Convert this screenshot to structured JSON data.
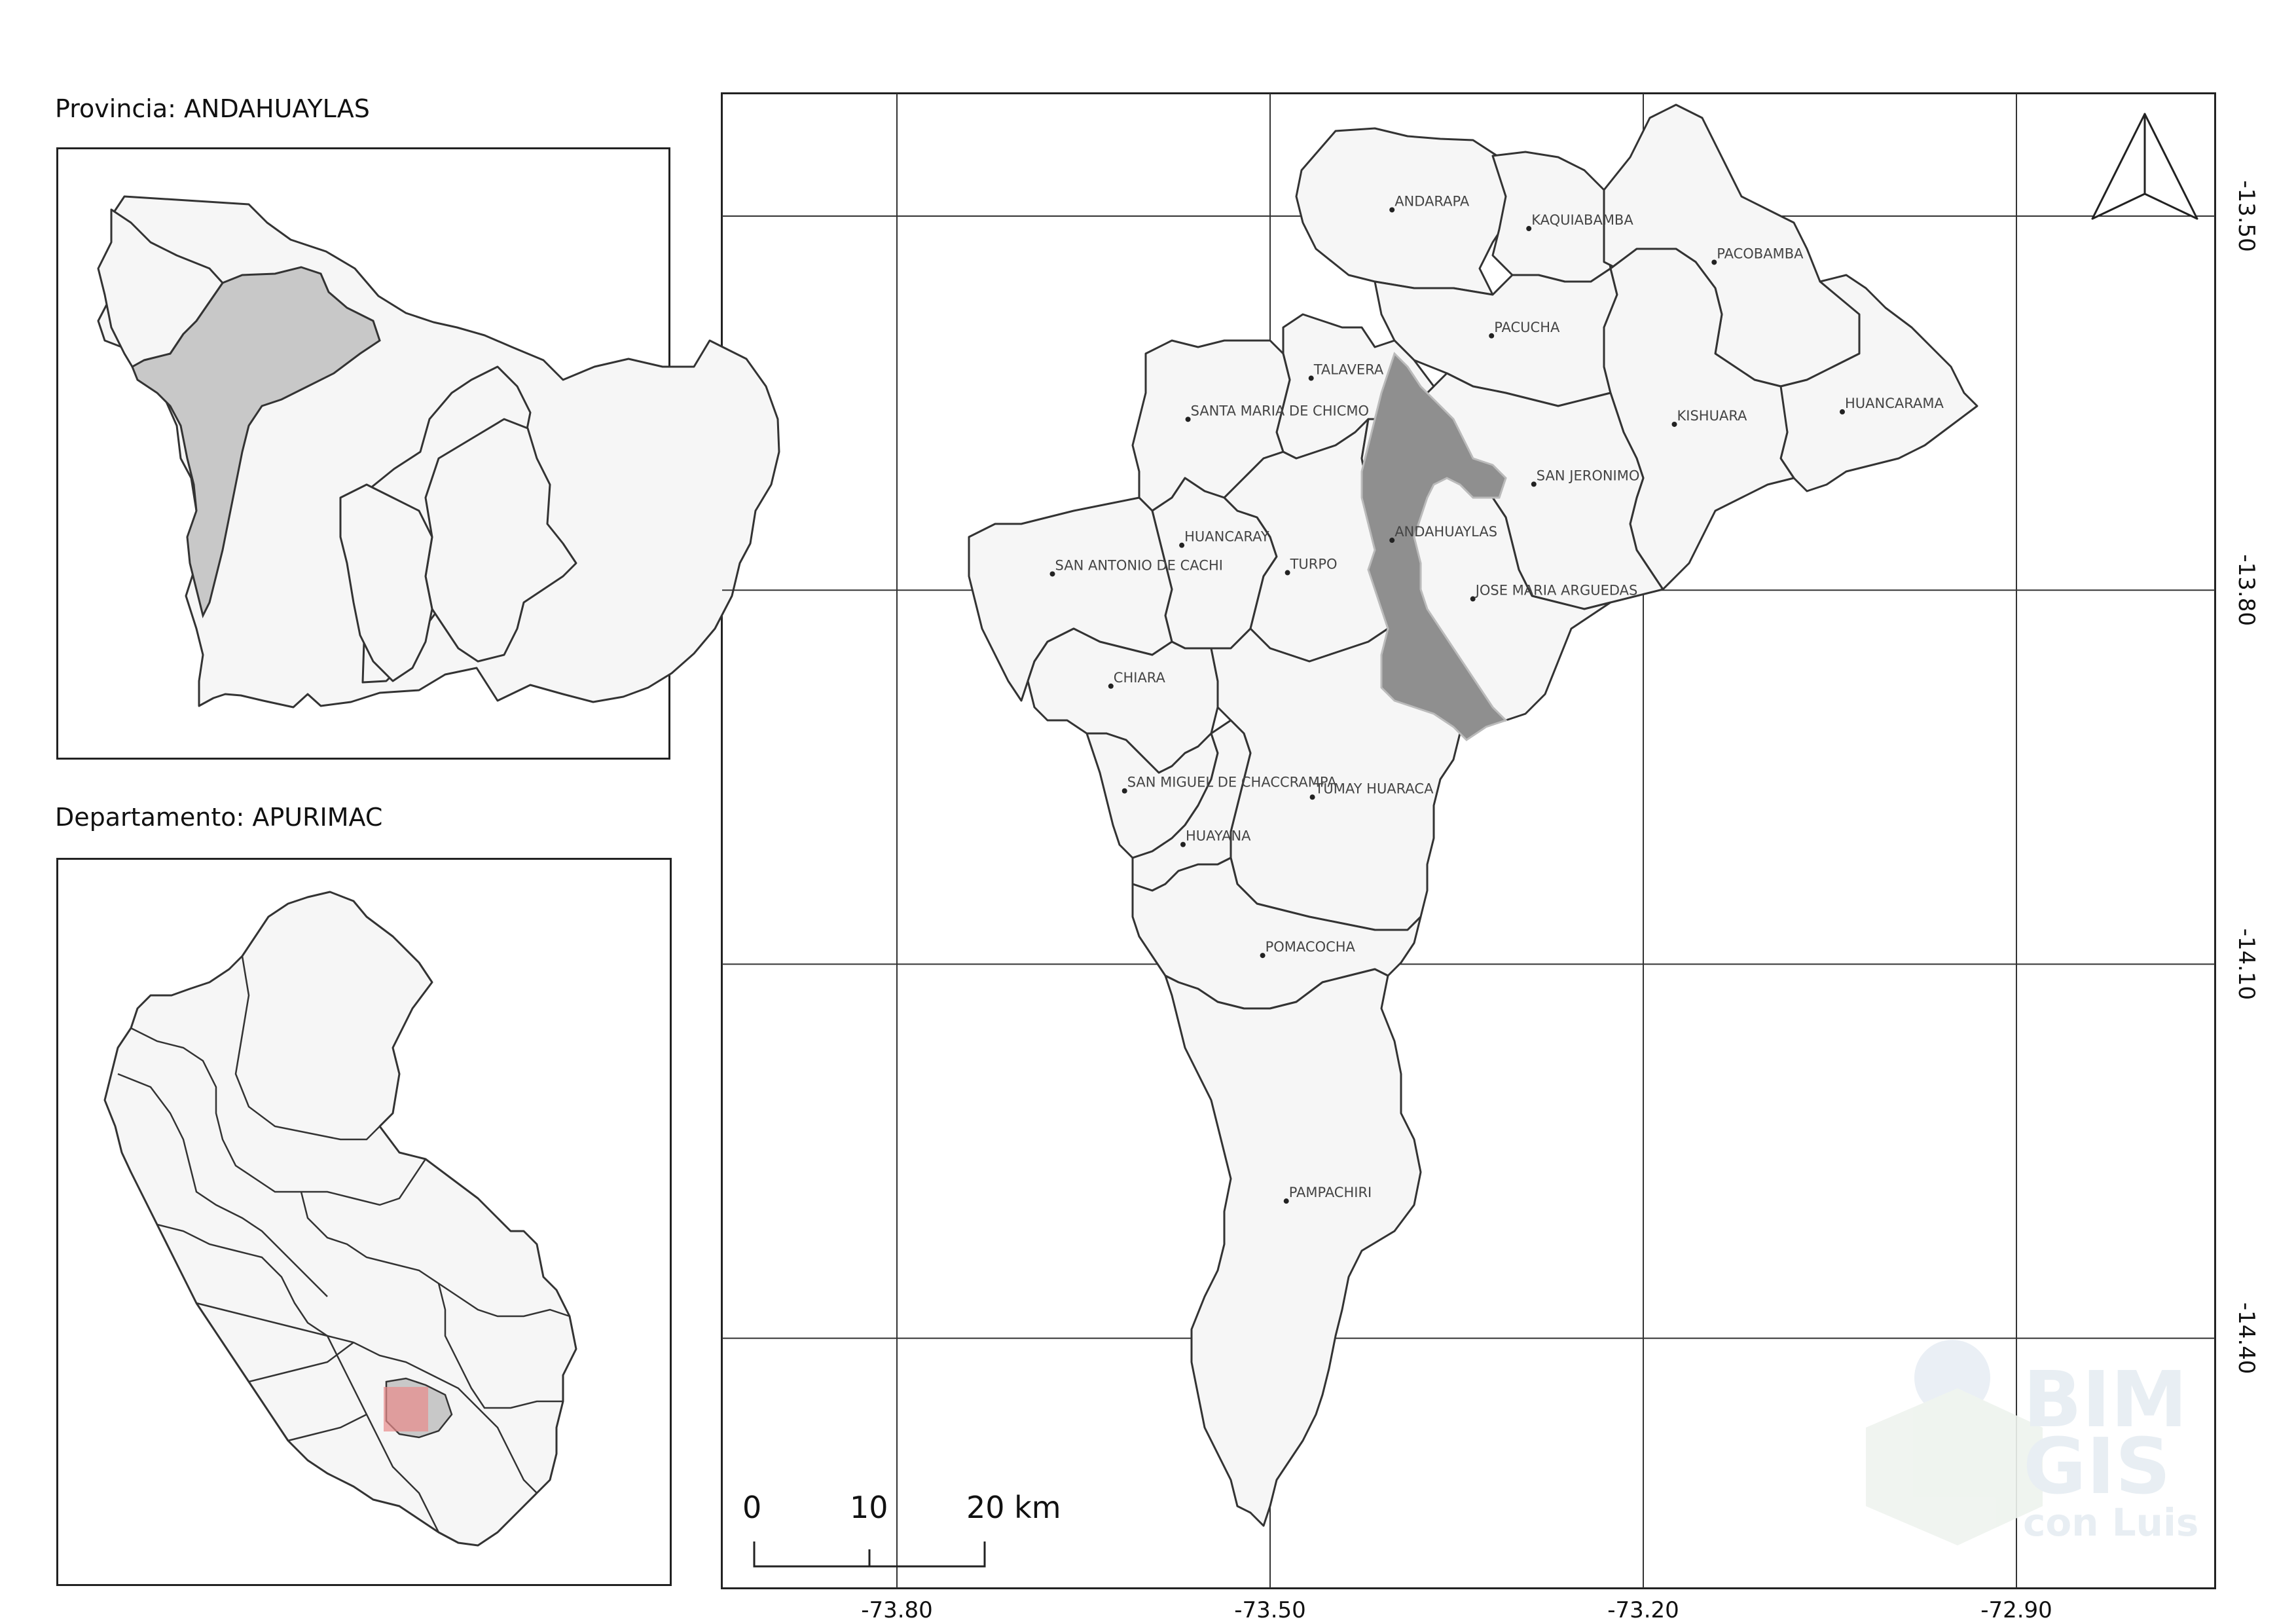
{
  "insets": {
    "province_title": "Provincia: ANDAHUAYLAS",
    "department_title": "Departamento: APURIMAC"
  },
  "places": [
    {
      "name": "ANDARAPA",
      "lon": -73.402,
      "lat": -13.495
    },
    {
      "name": "KAQUIABAMBA",
      "lon": -73.292,
      "lat": -13.51
    },
    {
      "name": "PACOBAMBA",
      "lon": -73.143,
      "lat": -13.537
    },
    {
      "name": "PACUCHA",
      "lon": -73.322,
      "lat": -13.596
    },
    {
      "name": "TALAVERA",
      "lon": -73.467,
      "lat": -13.63
    },
    {
      "name": "SANTA MARIA DE CHICMO",
      "lon": -73.566,
      "lat": -13.663
    },
    {
      "name": "HUANCARAMA",
      "lon": -73.04,
      "lat": -13.657
    },
    {
      "name": "KISHUARA",
      "lon": -73.175,
      "lat": -13.667
    },
    {
      "name": "SAN JERONIMO",
      "lon": -73.288,
      "lat": -13.715
    },
    {
      "name": "HUANCARAY",
      "lon": -73.571,
      "lat": -13.764
    },
    {
      "name": "ANDAHUAYLAS",
      "lon": -73.402,
      "lat": -13.76
    },
    {
      "name": "SAN ANTONIO DE CACHI",
      "lon": -73.675,
      "lat": -13.787
    },
    {
      "name": "TURPO",
      "lon": -73.486,
      "lat": -13.786
    },
    {
      "name": "JOSE MARIA ARGUEDAS",
      "lon": -73.337,
      "lat": -13.807
    },
    {
      "name": "CHIARA",
      "lon": -73.628,
      "lat": -13.877
    },
    {
      "name": "SAN MIGUEL DE CHACCRAMPA",
      "lon": -73.617,
      "lat": -13.961
    },
    {
      "name": "TUMAY HUARACA",
      "lon": -73.466,
      "lat": -13.966
    },
    {
      "name": "HUAYANA",
      "lon": -73.57,
      "lat": -14.004
    },
    {
      "name": "POMACOCHA",
      "lon": -73.506,
      "lat": -14.093
    },
    {
      "name": "PAMPACHIRI",
      "lon": -73.487,
      "lat": -14.29
    }
  ],
  "axes": {
    "x_ticks": [
      {
        "value": -73.8,
        "label": "-73.80"
      },
      {
        "value": -73.5,
        "label": "-73.50"
      },
      {
        "value": -73.2,
        "label": "-73.20"
      },
      {
        "value": -72.9,
        "label": "-72.90"
      }
    ],
    "y_ticks": [
      {
        "value": -13.5,
        "label": "-13.50"
      },
      {
        "value": -13.8,
        "label": "-13.80"
      },
      {
        "value": -14.1,
        "label": "-14.10"
      },
      {
        "value": -14.4,
        "label": "-14.40"
      }
    ]
  },
  "scale_bar": {
    "labels": [
      "0",
      "10",
      "20 km"
    ]
  },
  "watermark": {
    "line1": "BIM",
    "line2": "GIS",
    "line3": "con Luis"
  },
  "colors": {
    "district_fill": "#f6f6f6",
    "highlight": "#8f8f8f",
    "inset_highlight": "#c8c8c8",
    "location_marker": "#e88a8a"
  }
}
